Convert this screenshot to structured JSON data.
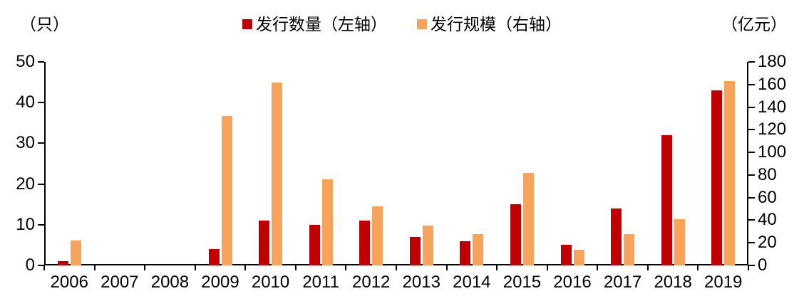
{
  "chart_data": {
    "type": "bar",
    "title": "",
    "categories": [
      "2006",
      "2007",
      "2008",
      "2009",
      "2010",
      "2011",
      "2012",
      "2013",
      "2014",
      "2015",
      "2016",
      "2017",
      "2018",
      "2019"
    ],
    "series": [
      {
        "name": "发行数量（左轴）",
        "axis": "left",
        "color": "#c00000",
        "values": [
          1,
          0,
          0,
          4,
          11,
          10,
          11,
          7,
          6,
          15,
          5,
          14,
          32,
          43
        ]
      },
      {
        "name": "发行规模（右轴）",
        "axis": "right",
        "color": "#f7a35c",
        "values": [
          22,
          0,
          0,
          132,
          162,
          76,
          52,
          35,
          28,
          82,
          14,
          28,
          41,
          163
        ]
      }
    ],
    "left_axis": {
      "label": "（只）",
      "min": 0,
      "max": 50,
      "ticks": [
        0,
        10,
        20,
        30,
        40,
        50
      ]
    },
    "right_axis": {
      "label": "（亿元）",
      "min": 0,
      "max": 180,
      "ticks": [
        0,
        20,
        40,
        60,
        80,
        100,
        120,
        140,
        160,
        180
      ]
    },
    "grid": false,
    "legend_position": "top-center"
  }
}
